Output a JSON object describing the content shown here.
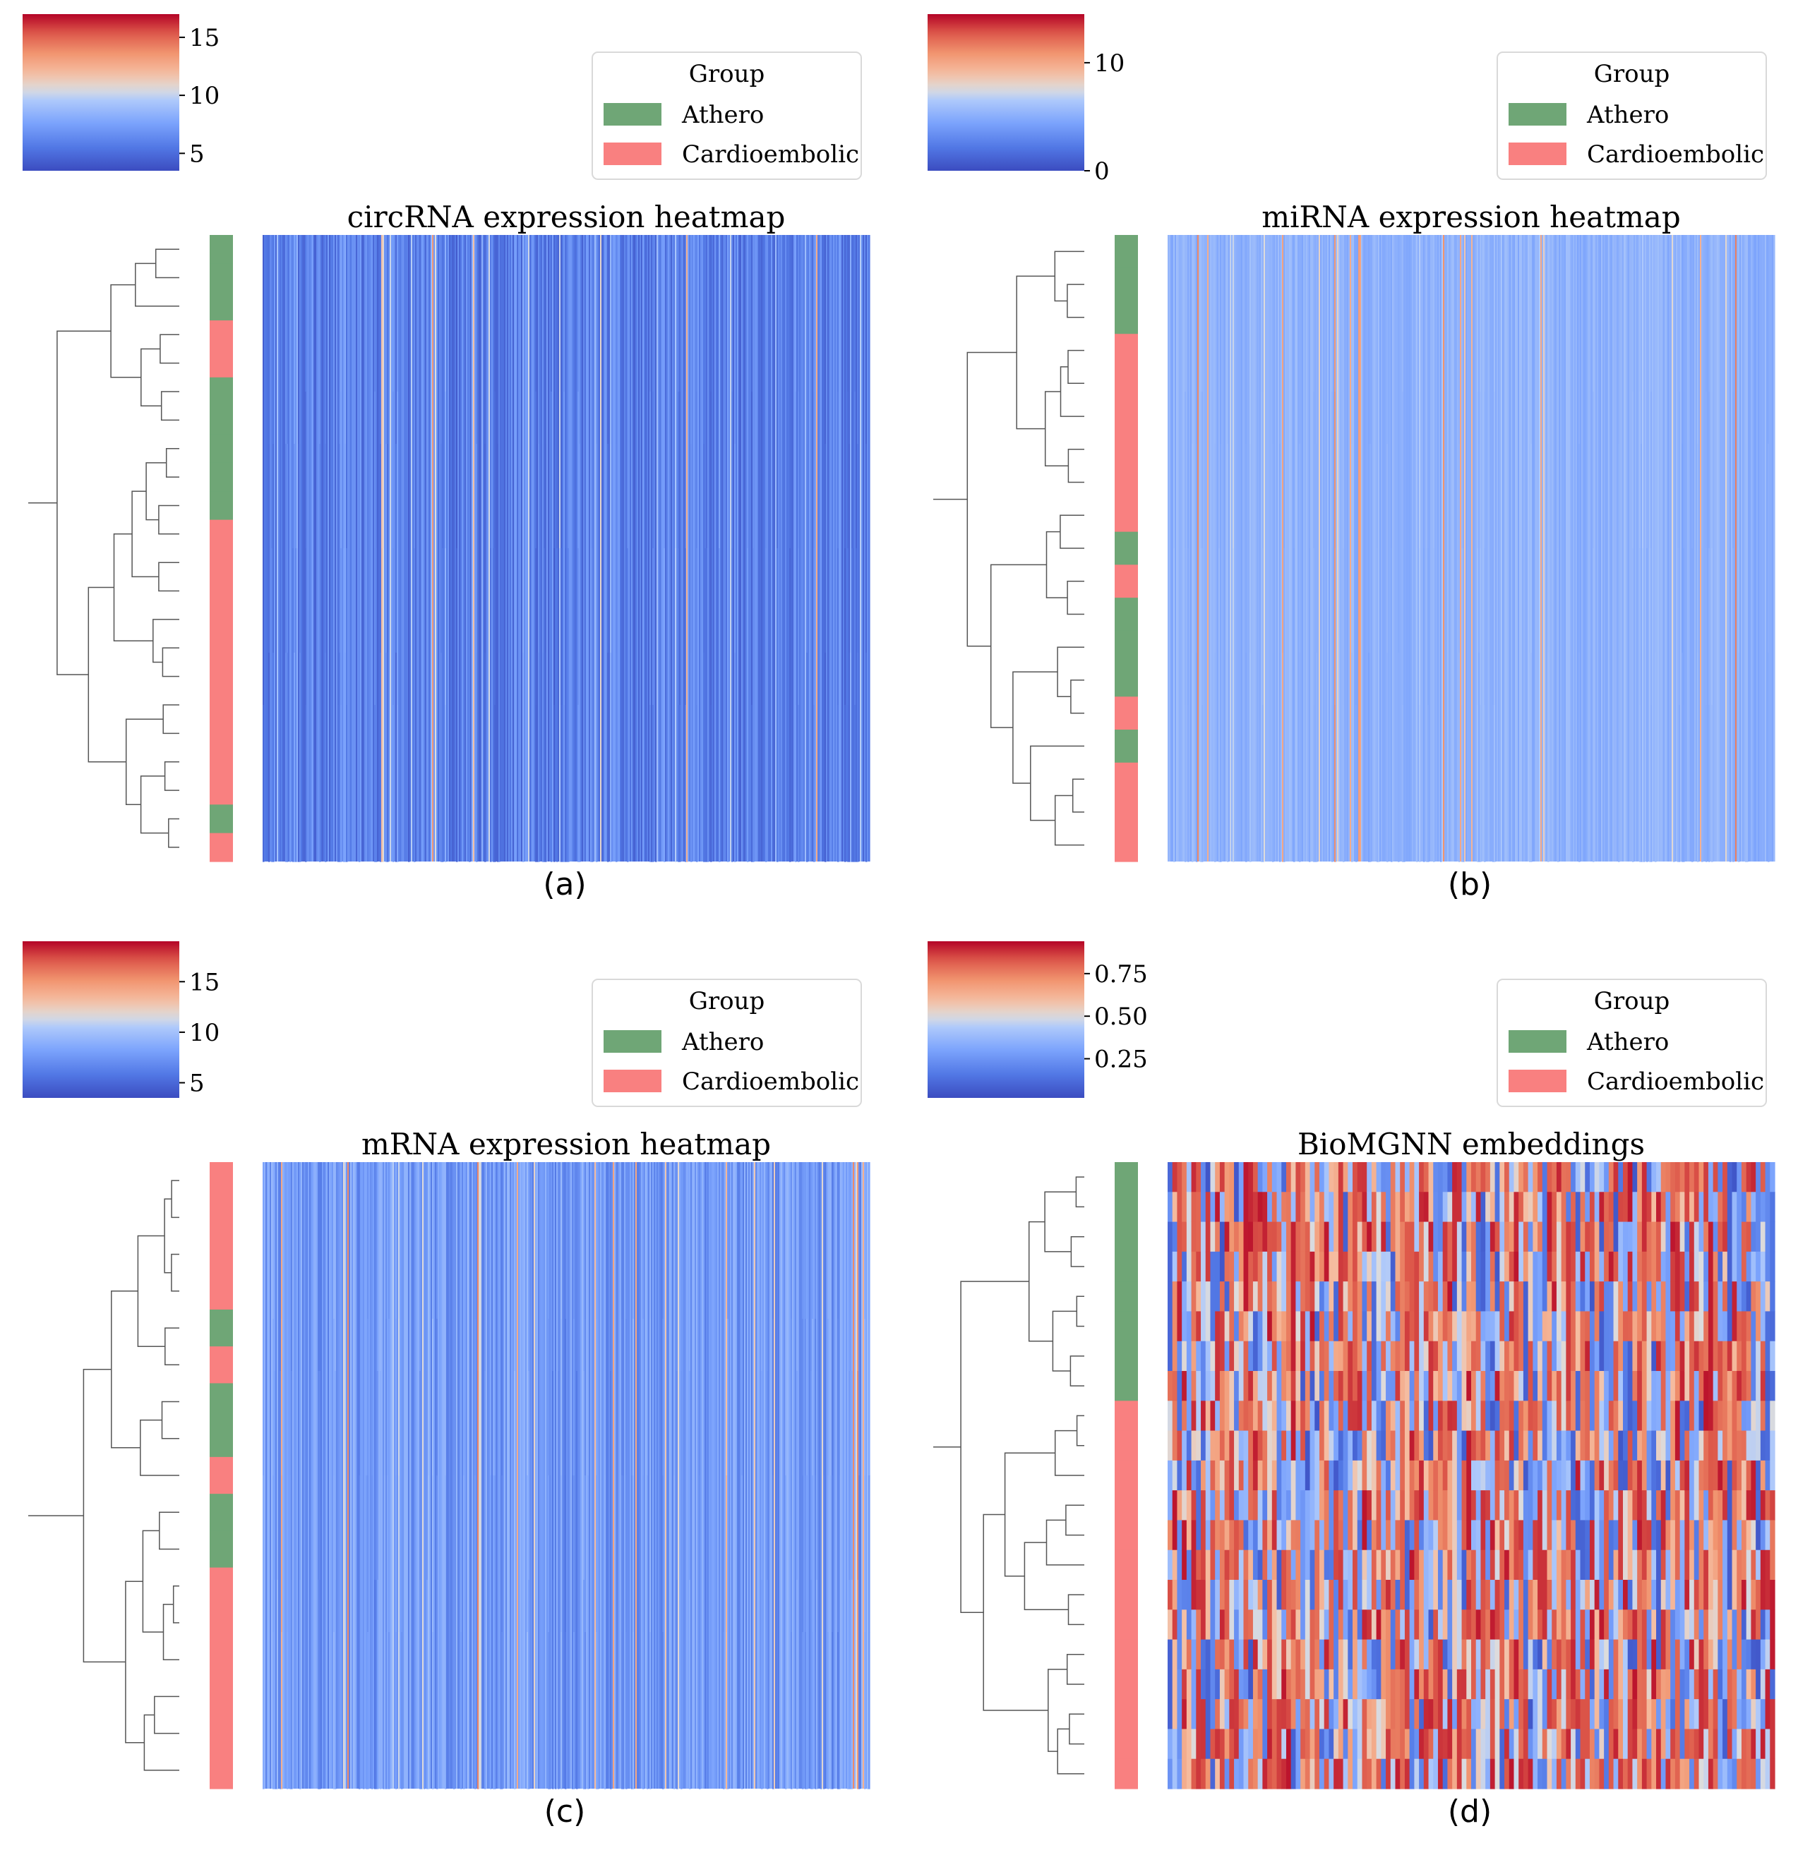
{
  "legend": {
    "title": "Group",
    "items": [
      {
        "label": "Athero",
        "color": "#6fa676"
      },
      {
        "label": "Cardioembolic",
        "color": "#f98080"
      }
    ]
  },
  "chart_data": [
    {
      "type": "heatmap",
      "id": "a",
      "title": "circRNA expression heatmap",
      "caption": "(a)",
      "colorbar": {
        "range": [
          3.5,
          17
        ],
        "ticks": [
          {
            "value": 5,
            "label": "5"
          },
          {
            "value": 10,
            "label": "10"
          },
          {
            "value": 15,
            "label": "15"
          }
        ]
      },
      "typical_value_range": [
        4.5,
        7.5
      ],
      "row_groups": [
        "Athero",
        "Athero",
        "Athero",
        "Cardioembolic",
        "Cardioembolic",
        "Athero",
        "Athero",
        "Athero",
        "Athero",
        "Athero",
        "Cardioembolic",
        "Cardioembolic",
        "Cardioembolic",
        "Cardioembolic",
        "Cardioembolic",
        "Cardioembolic",
        "Cardioembolic",
        "Cardioembolic",
        "Cardioembolic",
        "Cardioembolic",
        "Athero",
        "Cardioembolic"
      ]
    },
    {
      "type": "heatmap",
      "id": "b",
      "title": "miRNA expression heatmap",
      "caption": "(b)",
      "colorbar": {
        "range": [
          0,
          14.5
        ],
        "ticks": [
          {
            "value": 0,
            "label": "0"
          },
          {
            "value": 10,
            "label": "10"
          }
        ]
      },
      "typical_value_range": [
        4.5,
        6
      ],
      "row_groups": [
        "Athero",
        "Athero",
        "Athero",
        "Cardioembolic",
        "Cardioembolic",
        "Cardioembolic",
        "Cardioembolic",
        "Cardioembolic",
        "Cardioembolic",
        "Athero",
        "Cardioembolic",
        "Athero",
        "Athero",
        "Athero",
        "Cardioembolic",
        "Athero",
        "Cardioembolic",
        "Cardioembolic",
        "Cardioembolic"
      ]
    },
    {
      "type": "heatmap",
      "id": "c",
      "title": "mRNA expression heatmap",
      "caption": "(c)",
      "colorbar": {
        "range": [
          3.5,
          19
        ],
        "ticks": [
          {
            "value": 5,
            "label": "5"
          },
          {
            "value": 10,
            "label": "10"
          },
          {
            "value": 15,
            "label": "15"
          }
        ]
      },
      "typical_value_range": [
        6,
        9.5
      ],
      "row_groups": [
        "Cardioembolic",
        "Cardioembolic",
        "Cardioembolic",
        "Cardioembolic",
        "Athero",
        "Cardioembolic",
        "Athero",
        "Athero",
        "Cardioembolic",
        "Athero",
        "Athero",
        "Cardioembolic",
        "Cardioembolic",
        "Cardioembolic",
        "Cardioembolic",
        "Cardioembolic",
        "Cardioembolic"
      ]
    },
    {
      "type": "heatmap",
      "id": "d",
      "title": "BioMGNN embeddings",
      "caption": "(d)",
      "colorbar": {
        "range": [
          0.02,
          0.94
        ],
        "ticks": [
          {
            "value": 0.25,
            "label": "0.25"
          },
          {
            "value": 0.5,
            "label": "0.50"
          },
          {
            "value": 0.75,
            "label": "0.75"
          }
        ]
      },
      "typical_value_range": [
        0.05,
        0.9
      ],
      "row_groups": [
        "Athero",
        "Athero",
        "Athero",
        "Athero",
        "Athero",
        "Athero",
        "Athero",
        "Athero",
        "Cardioembolic",
        "Cardioembolic",
        "Cardioembolic",
        "Cardioembolic",
        "Cardioembolic",
        "Cardioembolic",
        "Cardioembolic",
        "Cardioembolic",
        "Cardioembolic",
        "Cardioembolic",
        "Cardioembolic",
        "Cardioembolic",
        "Cardioembolic"
      ]
    }
  ]
}
